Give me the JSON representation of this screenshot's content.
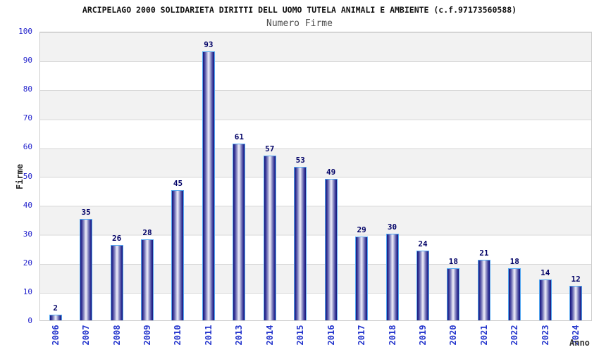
{
  "chart_data": {
    "type": "bar",
    "title": "ARCIPELAGO 2000 SOLIDARIETA DIRITTI DELL UOMO TUTELA ANIMALI E AMBIENTE (c.f.97173560588)",
    "subtitle": "Numero Firme",
    "xlabel": "Anno",
    "ylabel": "Firme",
    "categories": [
      "2006",
      "2007",
      "2008",
      "2009",
      "2010",
      "2011",
      "2013",
      "2014",
      "2015",
      "2016",
      "2017",
      "2018",
      "2019",
      "2020",
      "2021",
      "2022",
      "2023",
      "2024"
    ],
    "values": [
      2,
      35,
      26,
      28,
      45,
      93,
      61,
      57,
      53,
      49,
      29,
      30,
      24,
      18,
      21,
      18,
      14,
      12
    ],
    "ylim": [
      0,
      100
    ],
    "ytick_step": 10,
    "grid": "horizontal-bands",
    "legend": "none",
    "colors": {
      "bar_border": "#55a9f2",
      "bar_edge_dark": "#181878",
      "bar_center_light": "#f1f1fb",
      "axis_tick_label": "#2222cc",
      "x_tick_label": "#2233cc",
      "value_label": "#000066",
      "band_gray": "#f2f2f2",
      "band_white": "#ffffff",
      "grid_line": "#d9d9d9",
      "plot_border": "#cccccc",
      "title_color": "#111111",
      "subtitle_color": "#4d4d4d"
    }
  }
}
